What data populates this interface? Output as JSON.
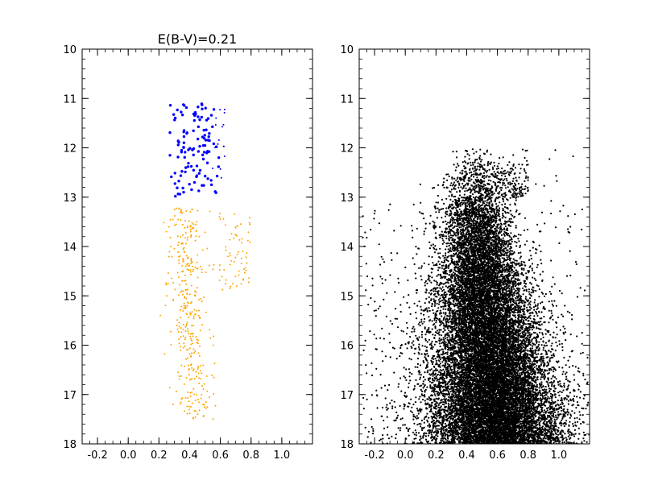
{
  "chart_data": [
    {
      "type": "scatter",
      "title": "E(B-V)=0.21",
      "xlabel": "",
      "ylabel": "",
      "xlim": [
        -0.3,
        1.2
      ],
      "ylim": [
        18,
        10
      ],
      "y_inverted": true,
      "grid": false,
      "legend": "none",
      "xticks": [
        "-0.2",
        "0.0",
        "0.2",
        "0.4",
        "0.6",
        "0.8",
        "1.0"
      ],
      "yticks": [
        "10",
        "11",
        "12",
        "13",
        "14",
        "15",
        "16",
        "17",
        "18"
      ],
      "series": [
        {
          "color": "#0000ff",
          "marker": "large-dot",
          "x_range": [
            0.24,
            0.62
          ],
          "y_range": [
            11.1,
            13.0
          ],
          "count": 115
        },
        {
          "color": "#0000ff",
          "marker": "small-dot",
          "x_range": [
            0.5,
            0.64
          ],
          "y_range": [
            11.2,
            12.9
          ],
          "count": 16
        },
        {
          "color": "#ffa500",
          "marker": "small-dot",
          "x_range": [
            0.2,
            0.82
          ],
          "y_range": [
            13.0,
            17.5
          ],
          "count": 430
        }
      ]
    },
    {
      "type": "scatter",
      "title": "",
      "xlabel": "",
      "ylabel": "",
      "xlim": [
        -0.3,
        1.2
      ],
      "ylim": [
        18,
        10
      ],
      "y_inverted": true,
      "grid": false,
      "legend": "none",
      "xticks": [
        "-0.2",
        "0.0",
        "0.2",
        "0.4",
        "0.6",
        "0.8",
        "1.0"
      ],
      "yticks": [
        "10",
        "11",
        "12",
        "13",
        "14",
        "15",
        "16",
        "17",
        "18"
      ],
      "series": [
        {
          "color": "#000000",
          "marker": "small-dot",
          "x_range": [
            -0.3,
            1.15
          ],
          "y_range": [
            12.0,
            18.0
          ],
          "count": 20000
        }
      ]
    }
  ]
}
